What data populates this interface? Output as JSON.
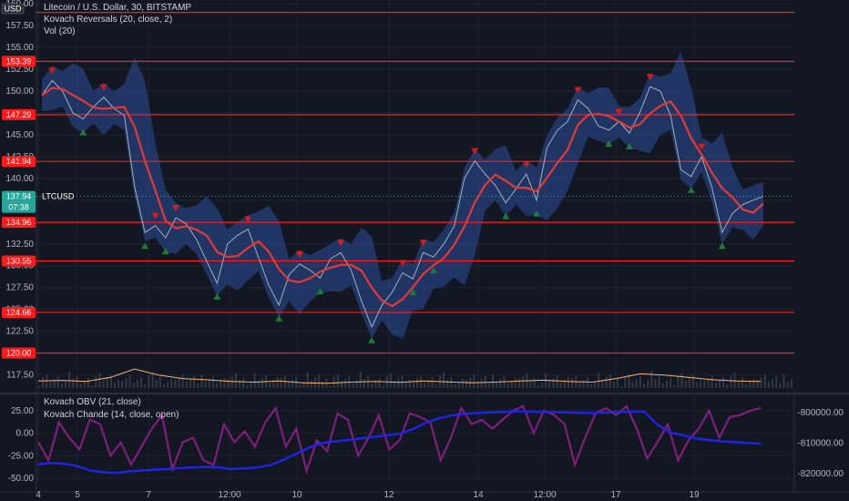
{
  "legend": {
    "line1": "Litecoin / U.S. Dollar, 30, BITSTAMP",
    "line2": "Kovach Reversals (20, close, 2)",
    "line3": "Vol (20)",
    "osc1": "Kovach OBV (21, close)",
    "osc2": "Kovach Chande (14, close, open)",
    "currency": "USD"
  },
  "colors": {
    "background": "#131722",
    "grid": "#1e222d",
    "price": "#9fb3b8",
    "band": "#2b4f9a",
    "ma": "#e53935",
    "level": "#ff1b1b",
    "up_marker": "#1b7a3c",
    "down_marker": "#d81b1b",
    "volume": "#f5b27a",
    "obv": "#1f24e8",
    "chande": "#7e1f7e",
    "last_price_badge": "#26a69a"
  },
  "chart_data": [
    {
      "type": "line",
      "title": "Litecoin / U.S. Dollar, 30, BITSTAMP",
      "ylim": [
        116,
        160
      ],
      "y_ticks": [
        117.5,
        120.0,
        122.5,
        125.0,
        127.5,
        130.0,
        132.5,
        135.0,
        137.5,
        140.0,
        142.5,
        145.0,
        147.5,
        150.0,
        152.5,
        155.0,
        157.5,
        160.0
      ],
      "x_ticks": [
        "4",
        "5",
        "7",
        "12:00",
        "10",
        "12",
        "14",
        "12:00",
        "17",
        "19"
      ],
      "price_levels": [
        159.0,
        153.39,
        147.29,
        141.94,
        134.96,
        130.55,
        124.66,
        120.0
      ],
      "last_price": {
        "symbol": "LTCUSD",
        "value": "137.94",
        "countdown": "07:38"
      },
      "series": [
        {
          "name": "LTCUSD",
          "x": [
            0,
            2,
            4,
            6,
            8,
            10,
            12,
            14,
            16,
            18,
            20,
            22,
            24,
            26,
            28,
            30,
            32,
            34,
            36,
            38,
            40,
            42,
            44,
            46,
            48,
            50,
            52,
            54,
            56,
            58,
            60,
            62,
            64,
            66,
            68,
            70,
            72,
            74,
            76,
            78,
            80,
            82,
            84,
            86,
            88,
            90,
            92,
            94,
            96,
            98,
            100,
            102,
            104,
            106,
            108,
            110,
            112,
            114,
            116,
            118,
            120,
            122,
            124,
            126,
            128,
            130,
            132,
            134,
            136,
            138,
            140
          ],
          "values": [
            149.5,
            151.2,
            150.0,
            147.5,
            146.8,
            148.2,
            149.3,
            148.0,
            147.2,
            139.0,
            133.8,
            134.6,
            133.2,
            135.5,
            134.8,
            133.0,
            130.5,
            128.0,
            132.5,
            133.5,
            134.2,
            131.0,
            127.8,
            125.5,
            129.0,
            130.2,
            129.5,
            128.6,
            130.8,
            131.5,
            129.5,
            126.0,
            123.0,
            125.5,
            127.0,
            129.2,
            128.5,
            131.5,
            131.0,
            132.5,
            134.5,
            140.0,
            142.0,
            140.5,
            139.2,
            137.2,
            138.8,
            140.5,
            137.5,
            143.5,
            145.5,
            146.5,
            149.0,
            148.0,
            146.0,
            145.5,
            146.5,
            145.2,
            147.5,
            150.5,
            150.0,
            147.2,
            141.0,
            140.2,
            142.5,
            139.0,
            133.8,
            136.0,
            137.0,
            137.5,
            137.94
          ]
        }
      ]
    },
    {
      "type": "bar",
      "title": "Vol (20)",
      "series": [
        {
          "name": "Vol (20) MA",
          "values": [
            0.3,
            0.32,
            0.28,
            0.45,
            0.8,
            0.55,
            0.4,
            0.35,
            0.28,
            0.25,
            0.3,
            0.22,
            0.2,
            0.25,
            0.28,
            0.24,
            0.3,
            0.26,
            0.22,
            0.25,
            0.3,
            0.33,
            0.28,
            0.25,
            0.4,
            0.6,
            0.55,
            0.45,
            0.35,
            0.3,
            0.28
          ]
        }
      ]
    },
    {
      "type": "line",
      "title": "Kovach Chande (14, close, open)",
      "ylim": [
        -55,
        40
      ],
      "y_ticks": [
        -50.0,
        -25.0,
        0.0,
        25.0
      ],
      "series": [
        {
          "name": "Kovach Chande",
          "values": [
            -10,
            -30,
            12,
            -5,
            -18,
            15,
            10,
            -25,
            -10,
            -35,
            -15,
            5,
            20,
            -40,
            -10,
            -5,
            -30,
            -35,
            10,
            -10,
            2,
            -15,
            12,
            28,
            -15,
            5,
            -42,
            -8,
            -20,
            22,
            15,
            -25,
            -5,
            20,
            -18,
            -8,
            22,
            18,
            12,
            -30,
            -5,
            28,
            10,
            15,
            5,
            15,
            25,
            30,
            0,
            25,
            20,
            10,
            -35,
            -5,
            22,
            28,
            20,
            30,
            5,
            -28,
            -10,
            10,
            -30,
            -8,
            5,
            25,
            -5,
            18,
            20,
            25,
            28
          ]
        }
      ]
    },
    {
      "type": "line",
      "title": "Kovach OBV (21, close)",
      "ylim": [
        -823000,
        -795000
      ],
      "y_ticks": [
        -800000.0,
        -810000.0,
        -820000.0
      ],
      "series": [
        {
          "name": "Kovach OBV",
          "values": [
            -817000,
            -816500,
            -816800,
            -817500,
            -819000,
            -819500,
            -819800,
            -819300,
            -819000,
            -818700,
            -818500,
            -818200,
            -818000,
            -817800,
            -818000,
            -818500,
            -818300,
            -818000,
            -817200,
            -815500,
            -813500,
            -811500,
            -810000,
            -809500,
            -809000,
            -808500,
            -808000,
            -807500,
            -807000,
            -805500,
            -803500,
            -802000,
            -801000,
            -800500,
            -800200,
            -800000,
            -799800,
            -799600,
            -799700,
            -799800,
            -799900,
            -800000,
            -800100,
            -800200,
            -800000,
            -799800,
            -799700,
            -799800,
            -804000,
            -806500,
            -807500,
            -808500,
            -809000,
            -809500,
            -809700,
            -810000,
            -810200
          ]
        }
      ]
    }
  ]
}
